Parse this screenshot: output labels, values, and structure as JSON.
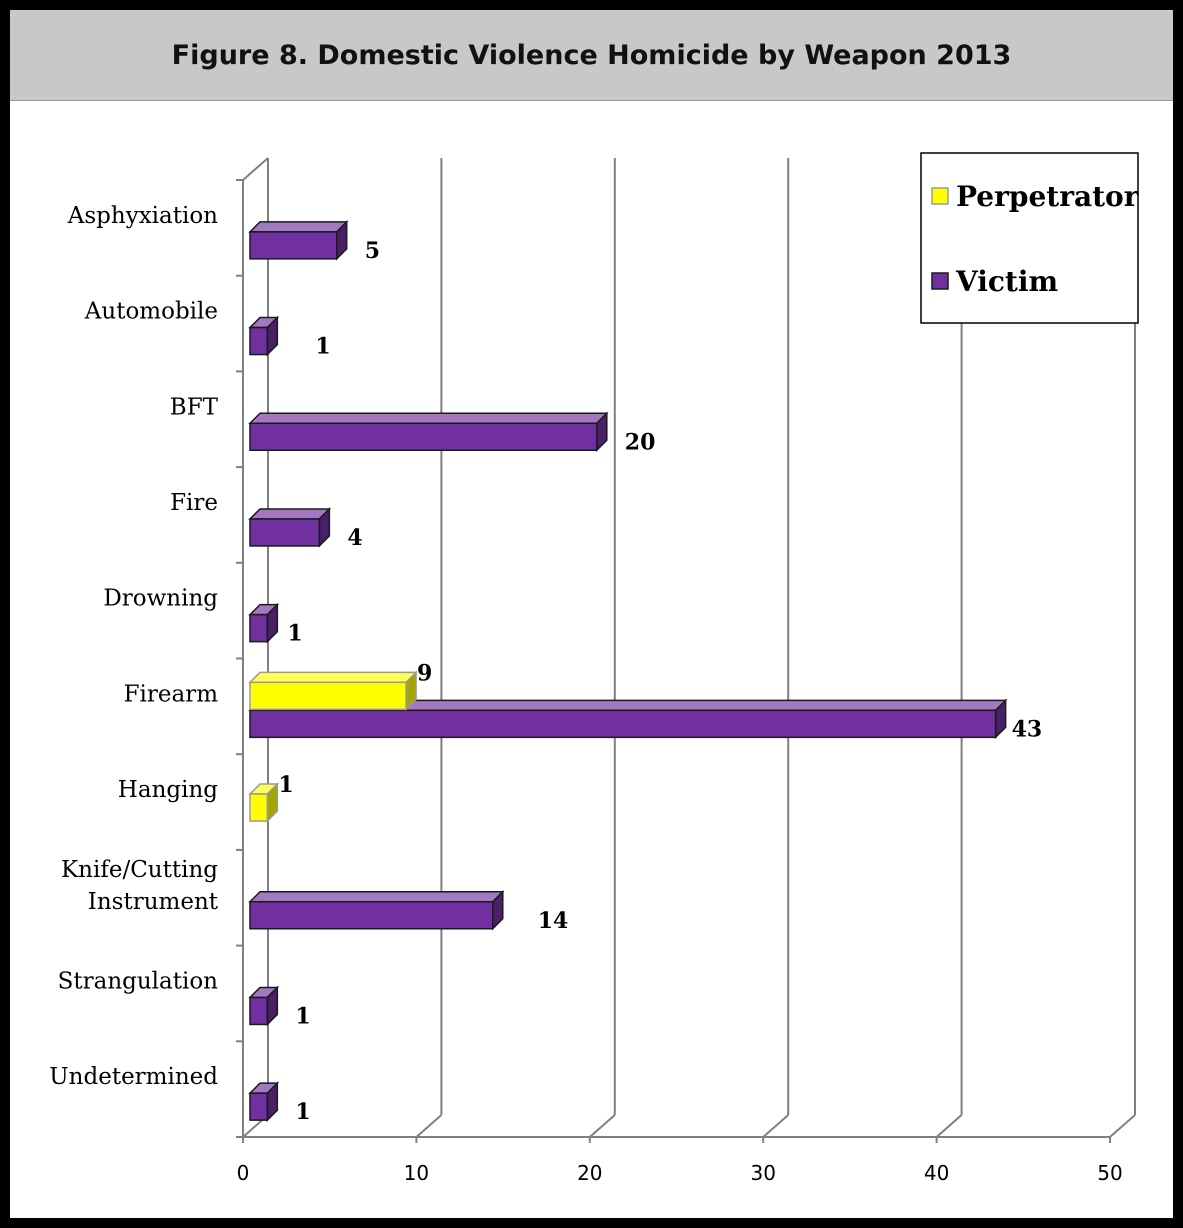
{
  "chart_data": {
    "type": "bar",
    "orientation": "horizontal",
    "title": "Figure 8. Domestic Violence Homicide by Weapon 2013",
    "categories": [
      "Asphyxiation",
      "Automobile",
      "BFT",
      "Fire",
      "Drowning",
      "Firearm",
      "Hanging",
      "Knife/Cutting Instrument",
      "Strangulation",
      "Undetermined"
    ],
    "category_lines": [
      [
        "Asphyxiation"
      ],
      [
        "Automobile"
      ],
      [
        "BFT"
      ],
      [
        "Fire"
      ],
      [
        "Drowning"
      ],
      [
        "Firearm"
      ],
      [
        "Hanging"
      ],
      [
        "Knife/Cutting",
        "Instrument"
      ],
      [
        "Strangulation"
      ],
      [
        "Undetermined"
      ]
    ],
    "series": [
      {
        "name": "Perpetrator",
        "color": "#ffff00",
        "values": [
          null,
          null,
          null,
          null,
          null,
          9,
          1,
          null,
          null,
          null
        ]
      },
      {
        "name": "Victim",
        "color": "#7030a0",
        "values": [
          5,
          1,
          20,
          4,
          1,
          43,
          null,
          14,
          1,
          1
        ]
      }
    ],
    "xlim": [
      0,
      50
    ],
    "xticks": [
      0,
      10,
      20,
      30,
      40,
      50
    ],
    "xlabel": "",
    "ylabel": "",
    "grid": true,
    "legend_position": "top-right"
  }
}
